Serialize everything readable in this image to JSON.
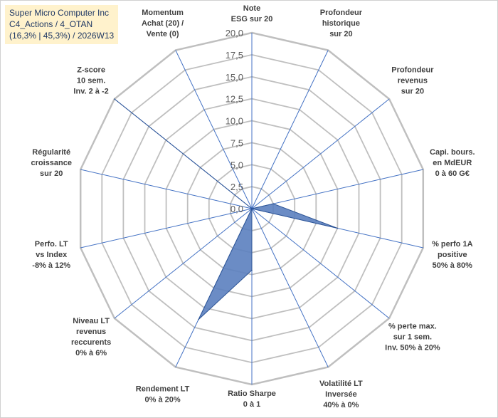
{
  "title": {
    "line1": "Super Micro Computer Inc",
    "line2": "C4_Actions / 4_OTAN",
    "line3": "(16,3% | 45,3%) / 2026W13"
  },
  "chart_data": {
    "type": "radar",
    "rmin": 0,
    "rmax": 20,
    "tick_step": 2.5,
    "tick_labels": [
      "0,0",
      "2,5",
      "5,0",
      "7,5",
      "10,0",
      "12,5",
      "15,0",
      "17,5",
      "20,0"
    ],
    "axes": [
      {
        "label": [
          "Note",
          "ESG sur 20"
        ],
        "value": 0
      },
      {
        "label": [
          "Profondeur",
          "historique",
          "sur 20"
        ],
        "value": 0
      },
      {
        "label": [
          "Profondeur",
          "revenus",
          "sur 20"
        ],
        "value": 0
      },
      {
        "label": [
          "Capi. bours.",
          "en MdEUR",
          "0 à 60 G€"
        ],
        "value": 2.5
      },
      {
        "label": [
          "% perfo 1A",
          "positive",
          "50% à 80%"
        ],
        "value": 10
      },
      {
        "label": [
          "% perte max.",
          "sur 1 sem.",
          "Inv. 50% à 20%"
        ],
        "value": 0
      },
      {
        "label": [
          "Volatilité LT",
          "Inversée",
          "40% à 0%"
        ],
        "value": 0
      },
      {
        "label": [
          "Ratio Sharpe",
          "0 à 1"
        ],
        "value": 7
      },
      {
        "label": [
          "Rendement LT",
          "0% à 20%"
        ],
        "value": 14
      },
      {
        "label": [
          "Niveau LT",
          "revenus",
          "reccurents",
          "0% à 6%"
        ],
        "value": 0
      },
      {
        "label": [
          "Perfo. LT",
          "vs Index",
          "-8% à 12%"
        ],
        "value": 0
      },
      {
        "label": [
          "Régularité",
          "croissance",
          "sur 20"
        ],
        "value": 0
      },
      {
        "label": [
          "Z-score",
          "10 sem.",
          "Inv. 2 à -2"
        ],
        "value": 20
      },
      {
        "label": [
          "Momentum",
          "Achat (20) /",
          "Vente (0)"
        ],
        "value": 0
      }
    ],
    "colors": {
      "fill": "#5b7fbf",
      "edge": "#2e5596",
      "grid": "#bfbfbf",
      "spoke": "#4472c4",
      "title_bg": "#fff2cc"
    }
  }
}
